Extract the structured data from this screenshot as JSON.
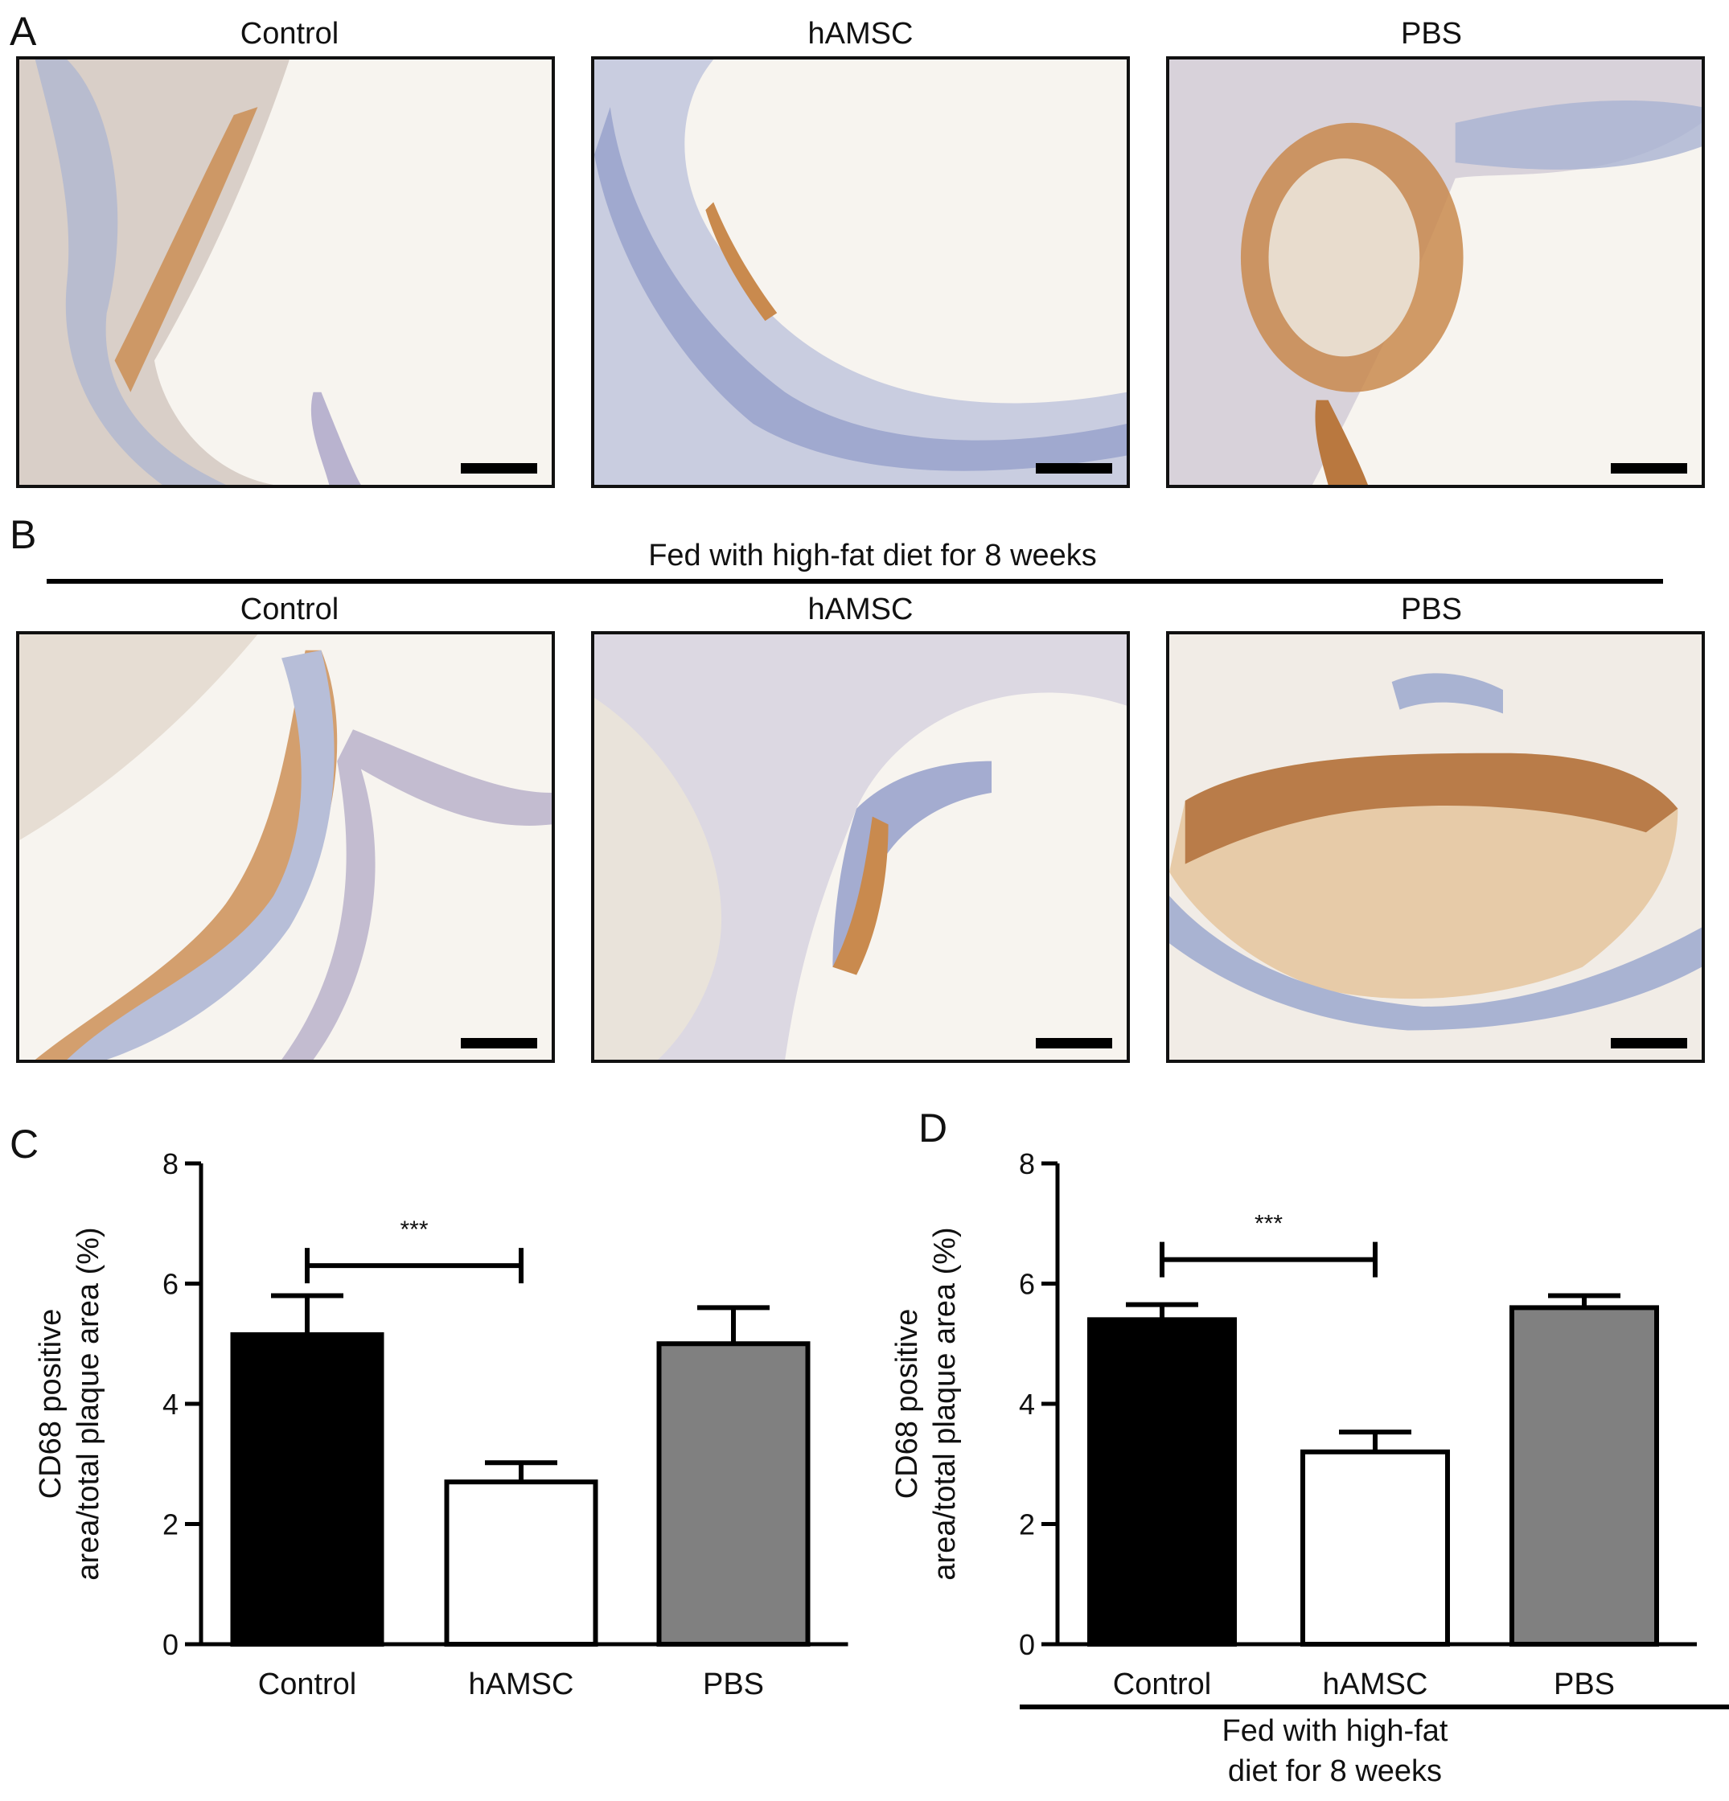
{
  "figure": {
    "panels": {
      "a": {
        "letter": "A",
        "titles": [
          "Control",
          "hAMSC",
          "PBS"
        ]
      },
      "b": {
        "letter": "B",
        "group_label": "Fed with high-fat diet for 8 weeks",
        "titles": [
          "Control",
          "hAMSC",
          "PBS"
        ]
      },
      "c": {
        "letter": "C"
      },
      "d": {
        "letter": "D",
        "group_label_line1": "Fed with high-fat",
        "group_label_line2": "diet for 8 weeks"
      }
    }
  },
  "chart_data": [
    {
      "type": "bar",
      "panel": "C",
      "categories": [
        "Control",
        "hAMSC",
        "PBS"
      ],
      "values": [
        5.15,
        2.7,
        5.0
      ],
      "errors": [
        0.65,
        0.32,
        0.6
      ],
      "bar_colors": [
        "#000000",
        "#ffffff",
        "#808080"
      ],
      "ylabel": "CD68 positive area/total plaque area (%)",
      "ylabel_line1": "CD68 positive",
      "ylabel_line2": "area/total plaque area (%)",
      "ylim": [
        0,
        8
      ],
      "yticks": [
        "0",
        "2",
        "4",
        "6",
        "8"
      ],
      "significance": {
        "from": "Control",
        "to": "hAMSC",
        "y": 6.3,
        "label": "***"
      }
    },
    {
      "type": "bar",
      "panel": "D",
      "categories": [
        "Control",
        "hAMSC",
        "PBS"
      ],
      "values": [
        5.4,
        3.2,
        5.6
      ],
      "errors": [
        0.25,
        0.33,
        0.2
      ],
      "bar_colors": [
        "#000000",
        "#ffffff",
        "#808080"
      ],
      "ylabel": "CD68 positive area/total plaque area (%)",
      "ylabel_line1": "CD68 positive",
      "ylabel_line2": "area/total plaque area (%)",
      "ylim": [
        0,
        8
      ],
      "yticks": [
        "0",
        "2",
        "4",
        "6",
        "8"
      ],
      "significance": {
        "from": "Control",
        "to": "hAMSC",
        "y": 6.4,
        "label": "***"
      }
    }
  ]
}
